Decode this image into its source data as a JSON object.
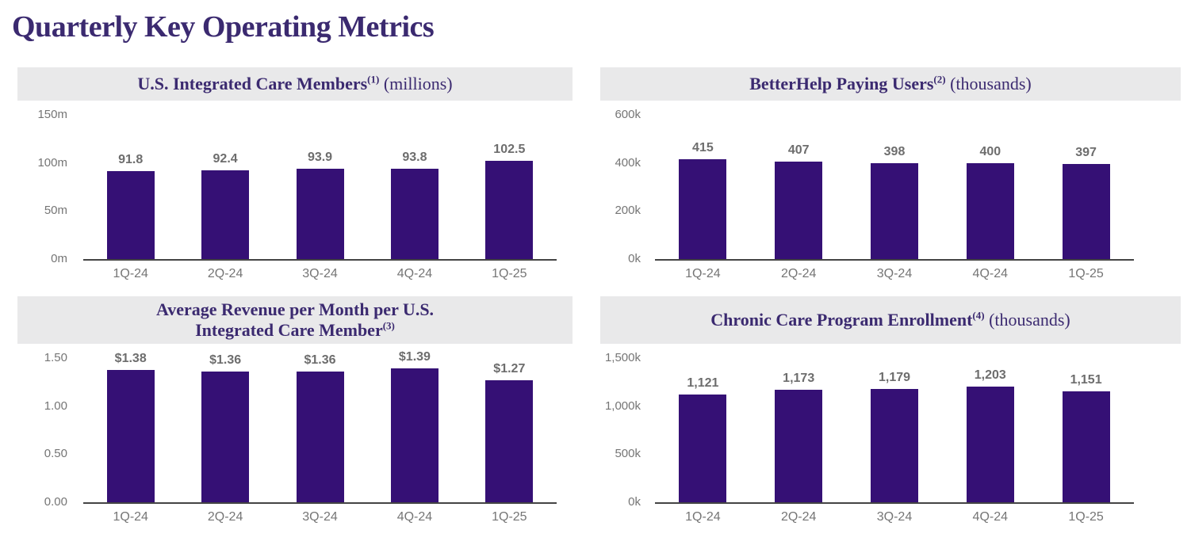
{
  "page": {
    "title": "Quarterly Key Operating Metrics"
  },
  "colors": {
    "bar": "#351075",
    "heading_purple": "#3b2a70",
    "header_background": "#e9e9ea",
    "value_label_gray": "#6d6d6d",
    "tick_label_gray": "#757575",
    "axis_line": "#444444"
  },
  "chart_data": [
    {
      "type": "bar",
      "title": "U.S. Integrated Care Members",
      "footnote_marker": "(1)",
      "unit_suffix": " (millions)",
      "categories": [
        "1Q-24",
        "2Q-24",
        "3Q-24",
        "4Q-24",
        "1Q-25"
      ],
      "values": [
        91.8,
        92.4,
        93.9,
        93.8,
        102.5
      ],
      "value_labels": [
        "91.8",
        "92.4",
        "93.9",
        "93.8",
        "102.5"
      ],
      "ylim": [
        0,
        150
      ],
      "yticks": [
        {
          "value": 150,
          "label": "150m"
        },
        {
          "value": 100,
          "label": "100m"
        },
        {
          "value": 50,
          "label": "50m"
        },
        {
          "value": 0,
          "label": "0m"
        }
      ],
      "grid": false,
      "legend_position": "none"
    },
    {
      "type": "bar",
      "title": "BetterHelp Paying Users",
      "footnote_marker": "(2)",
      "unit_suffix": " (thousands)",
      "categories": [
        "1Q-24",
        "2Q-24",
        "3Q-24",
        "4Q-24",
        "1Q-25"
      ],
      "values": [
        415,
        407,
        398,
        400,
        397
      ],
      "value_labels": [
        "415",
        "407",
        "398",
        "400",
        "397"
      ],
      "ylim": [
        0,
        600
      ],
      "yticks": [
        {
          "value": 600,
          "label": "600k"
        },
        {
          "value": 400,
          "label": "400k"
        },
        {
          "value": 200,
          "label": "200k"
        },
        {
          "value": 0,
          "label": "0k"
        }
      ],
      "grid": false,
      "legend_position": "none"
    },
    {
      "type": "bar",
      "title": "Average Revenue per Month per U.S.\nIntegrated Care Member",
      "footnote_marker": "(3)",
      "unit_suffix": "",
      "categories": [
        "1Q-24",
        "2Q-24",
        "3Q-24",
        "4Q-24",
        "1Q-25"
      ],
      "values": [
        1.38,
        1.36,
        1.36,
        1.39,
        1.27
      ],
      "value_labels": [
        "$1.38",
        "$1.36",
        "$1.36",
        "$1.39",
        "$1.27"
      ],
      "ylim": [
        0,
        1.5
      ],
      "yticks": [
        {
          "value": 1.5,
          "label": "1.50"
        },
        {
          "value": 1.0,
          "label": "1.00"
        },
        {
          "value": 0.5,
          "label": "0.50"
        },
        {
          "value": 0,
          "label": "0.00"
        }
      ],
      "grid": false,
      "legend_position": "none"
    },
    {
      "type": "bar",
      "title": "Chronic Care Program Enrollment",
      "footnote_marker": "(4)",
      "unit_suffix": " (thousands)",
      "categories": [
        "1Q-24",
        "2Q-24",
        "3Q-24",
        "4Q-24",
        "1Q-25"
      ],
      "values": [
        1121,
        1173,
        1179,
        1203,
        1151
      ],
      "value_labels": [
        "1,121",
        "1,173",
        "1,179",
        "1,203",
        "1,151"
      ],
      "ylim": [
        0,
        1500
      ],
      "yticks": [
        {
          "value": 1500,
          "label": "1,500k"
        },
        {
          "value": 1000,
          "label": "1,000k"
        },
        {
          "value": 500,
          "label": "500k"
        },
        {
          "value": 0,
          "label": "0k"
        }
      ],
      "grid": false,
      "legend_position": "none"
    }
  ]
}
